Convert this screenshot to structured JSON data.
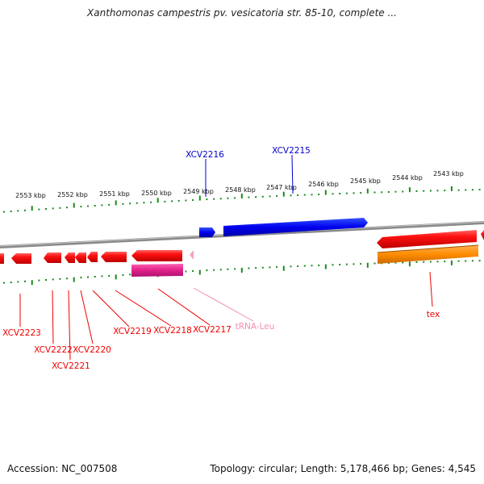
{
  "title": "Xanthomonas campestris pv. vesicatoria str. 85-10, complete ...",
  "accession_text": "Accession: NC_007508",
  "summary_text": "Topology: circular; Length: 5,178,466 bp; Genes: 4,545",
  "colors": {
    "backbone": "#8a8a8a",
    "scale_ticks": "#1a8a1a",
    "forward_gene": "#0000ee",
    "reverse_gene": "#ee0000",
    "orange_feature": "#ff8c00",
    "magenta_feature": "#e0208a",
    "trna_label": "#f090b0"
  },
  "scale_labels": [
    "2553 kbp",
    "2552 kbp",
    "2551 kbp",
    "2550 kbp",
    "2549 kbp",
    "2548 kbp",
    "2547 kbp",
    "2546 kbp",
    "2545 kbp",
    "2544 kbp",
    "2543 kbp"
  ],
  "forward_labels": [
    "XCV2216",
    "XCV2215"
  ],
  "reverse_labels": [
    "XCV2223",
    "XCV2222",
    "XCV2221",
    "XCV2220",
    "XCV2219",
    "XCV2218",
    "XCV2217",
    "tRNA-Leu",
    "tex"
  ]
}
